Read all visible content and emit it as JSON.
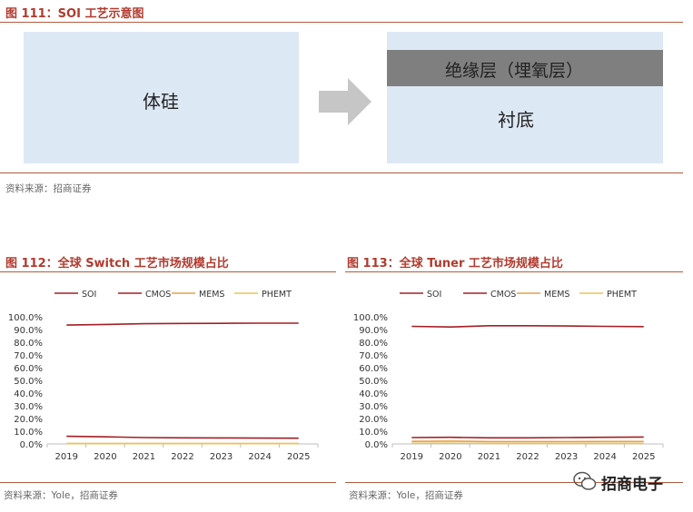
{
  "figure111": {
    "title": "图 111：SOI 工艺示意图",
    "bulk_label": "体硅",
    "oxide_label": "绝缘层（埋氧层）",
    "substrate_label": "衬底",
    "source": "资料来源：招商证券",
    "colors": {
      "box": "#dde8f5",
      "oxide": "#7f7f7f",
      "arrow": "#c6c6c6"
    }
  },
  "figure112": {
    "title": "图 112：全球 Switch 工艺市场规模占比",
    "source": "资料来源：Yole，招商证券"
  },
  "figure113": {
    "title": "图 113：全球 Tuner 工艺市场规模占比",
    "source": "资料来源：Yole，招商证券"
  },
  "watermark": {
    "text": "招商电子",
    "icon": "wechat-icon"
  },
  "chart_data": [
    {
      "type": "line",
      "title": "图 112：全球 Switch 工艺市场规模占比",
      "x": [
        "2019",
        "2020",
        "2021",
        "2022",
        "2023",
        "2024",
        "2025"
      ],
      "ylim": [
        0,
        100
      ],
      "yticks": [
        "0.0%",
        "10.0%",
        "20.0%",
        "30.0%",
        "40.0%",
        "50.0%",
        "60.0%",
        "70.0%",
        "80.0%",
        "90.0%",
        "100.0%"
      ],
      "legend_position": "top",
      "grid": false,
      "series": [
        {
          "name": "SOI",
          "color": "#a31f24",
          "values": [
            93.5,
            94.0,
            94.6,
            94.8,
            94.9,
            95.0,
            95.0
          ]
        },
        {
          "name": "CMOS",
          "color": "#a31f24",
          "values": [
            6.0,
            5.6,
            5.0,
            4.8,
            4.7,
            4.6,
            4.5
          ]
        },
        {
          "name": "MEMS",
          "color": "#e7a04a",
          "values": [
            0.3,
            0.3,
            0.3,
            0.3,
            0.3,
            0.3,
            0.3
          ]
        },
        {
          "name": "PHEMT",
          "color": "#e8c65a",
          "values": [
            0.2,
            0.2,
            0.2,
            0.2,
            0.2,
            0.2,
            0.2
          ]
        }
      ]
    },
    {
      "type": "line",
      "title": "图 113：全球 Tuner 工艺市场规模占比",
      "x": [
        "2019",
        "2020",
        "2021",
        "2022",
        "2023",
        "2024",
        "2025"
      ],
      "ylim": [
        0,
        100
      ],
      "yticks": [
        "0.0%",
        "10.0%",
        "20.0%",
        "30.0%",
        "40.0%",
        "50.0%",
        "60.0%",
        "70.0%",
        "80.0%",
        "90.0%",
        "100.0%"
      ],
      "legend_position": "top",
      "grid": false,
      "series": [
        {
          "name": "SOI",
          "color": "#a31f24",
          "values": [
            92.5,
            92.0,
            93.0,
            93.0,
            92.8,
            92.5,
            92.3
          ]
        },
        {
          "name": "CMOS",
          "color": "#a31f24",
          "values": [
            5.0,
            5.2,
            4.8,
            4.8,
            5.0,
            5.2,
            5.4
          ]
        },
        {
          "name": "MEMS",
          "color": "#e7a04a",
          "values": [
            2.0,
            2.2,
            1.8,
            1.8,
            1.8,
            1.9,
            1.9
          ]
        },
        {
          "name": "PHEMT",
          "color": "#e8c65a",
          "values": [
            0.5,
            0.6,
            0.4,
            0.4,
            0.4,
            0.4,
            0.4
          ]
        }
      ]
    }
  ]
}
